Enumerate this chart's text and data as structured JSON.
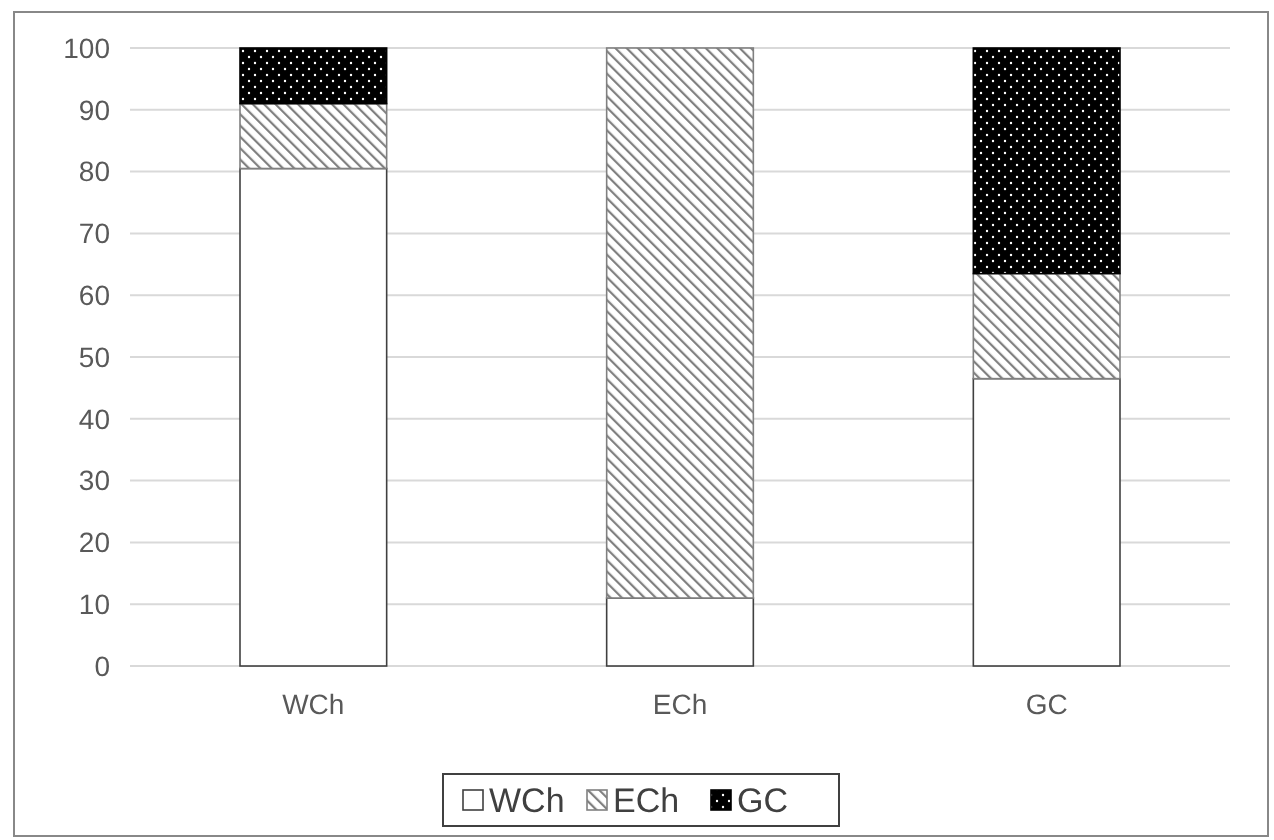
{
  "chart_data": {
    "type": "bar",
    "stacked": true,
    "categories": [
      "WCh",
      "ECh",
      "GC"
    ],
    "series": [
      {
        "name": "WCh",
        "color": "#ffffff",
        "values": [
          80.5,
          11,
          46.5
        ]
      },
      {
        "name": "ECh",
        "color": "#808080",
        "values": [
          10.5,
          89,
          17
        ]
      },
      {
        "name": "GC",
        "color": "#000000",
        "values": [
          9,
          0,
          36.5
        ]
      }
    ],
    "ylim": [
      0,
      100
    ],
    "yticks": [
      0,
      10,
      20,
      30,
      40,
      50,
      60,
      70,
      80,
      90,
      100
    ],
    "grid": "y",
    "legend": "bottom"
  }
}
